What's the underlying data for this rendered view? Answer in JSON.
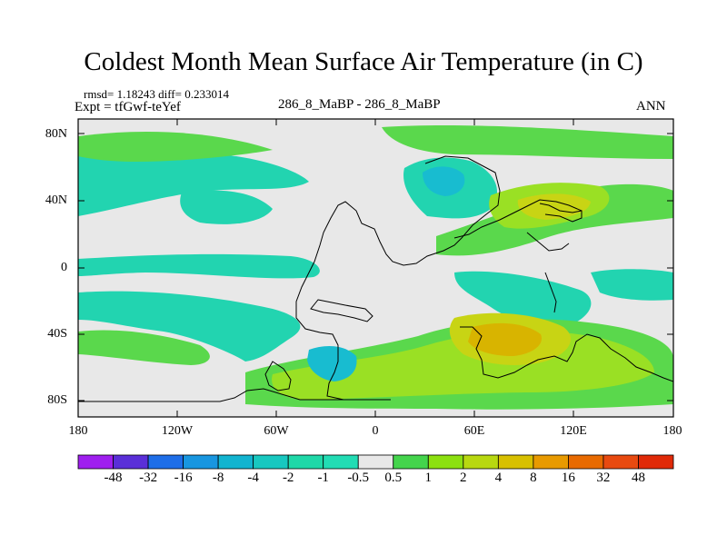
{
  "title": "Coldest Month Mean Surface Air Temperature (in C)",
  "stats": "rmsd= 1.18243 diff= 0.233014",
  "experiment": "Expt = tfGwf-teYef",
  "case": "286_8_MaBP - 286_8_MaBP",
  "season": "ANN",
  "axes": {
    "lat_labels": [
      "80N",
      "40N",
      "0",
      "40S",
      "80S"
    ],
    "lon_labels": [
      "180",
      "120W",
      "60W",
      "0",
      "60E",
      "120E",
      "180"
    ]
  },
  "colorbar": {
    "labels": [
      "-48",
      "-32",
      "-16",
      "-8",
      "-4",
      "-2",
      "-1",
      "-0.5",
      "0.5",
      "1",
      "2",
      "4",
      "8",
      "16",
      "32",
      "48"
    ],
    "colors": [
      "#9f1fef",
      "#5a2fd8",
      "#1e6ee8",
      "#1896e0",
      "#12b4d0",
      "#18c8c0",
      "#1fd8a8",
      "#22dcb4",
      "#e8e8e8",
      "#44d44c",
      "#8ce010",
      "#b8d810",
      "#d8c000",
      "#e89a00",
      "#e86a00",
      "#e84a10",
      "#e02a08"
    ]
  },
  "palette": {
    "background": "#e8e8e8",
    "cool": "#22d4b0",
    "cyan": "#18bcd0",
    "green": "#5ad84c",
    "lime": "#9ae024",
    "yellow": "#c8d414",
    "gold": "#d8b400",
    "orange": "#e89a10",
    "coast": "#000000"
  }
}
